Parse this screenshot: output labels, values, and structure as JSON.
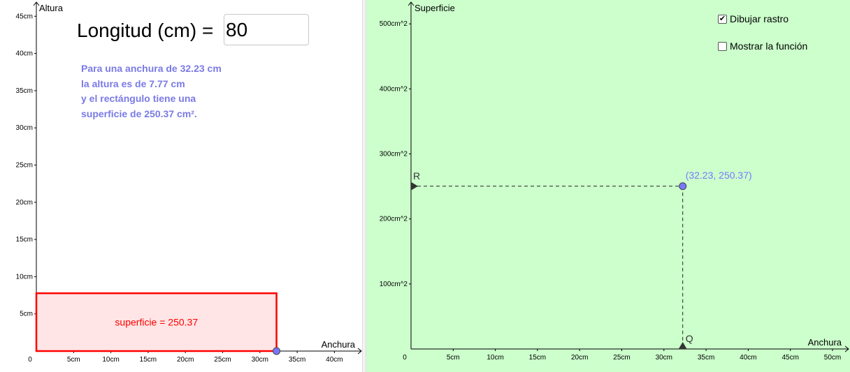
{
  "left": {
    "length_label": "Longitud (cm) =",
    "length_value": "80",
    "info_lines": [
      "Para una anchura de 32.23 cm",
      "la altura es de 7.77 cm",
      "y el rectángulo tiene una",
      "superficie de 250.37 cm²."
    ],
    "axes": {
      "y_title": "Altura",
      "x_title": "Anchura",
      "origin_label": "0",
      "x_ticks": [
        "5cm",
        "10cm",
        "15cm",
        "20cm",
        "25cm",
        "30cm",
        "35cm",
        "40cm"
      ],
      "y_ticks": [
        "5cm",
        "10cm",
        "15cm",
        "20cm",
        "25cm",
        "30cm",
        "35cm",
        "40cm",
        "45cm"
      ]
    },
    "rectangle": {
      "width": 32.23,
      "height": 7.77,
      "label": "superficie = 250.37",
      "stroke_color": "#ff0000",
      "fill_color": "#ffe5e5"
    },
    "point_color": "#7878ff"
  },
  "right": {
    "background_color": "#ccffcc",
    "axes": {
      "y_title": "Superficie",
      "x_title": "Anchura",
      "origin_label": "0",
      "x_ticks": [
        "5cm",
        "10cm",
        "15cm",
        "20cm",
        "25cm",
        "30cm",
        "35cm",
        "40cm",
        "45cm",
        "50cm"
      ],
      "y_ticks": [
        "100cm^2",
        "200cm^2",
        "300cm^2",
        "400cm^2",
        "500cm^2"
      ]
    },
    "point": {
      "x": 32.23,
      "y": 250.37,
      "label": "(32.23, 250.37)",
      "color": "#7878ff"
    },
    "r_label": "R",
    "q_label": "Q",
    "checkboxes": [
      {
        "label": "Dibujar rastro",
        "checked": true
      },
      {
        "label": "Mostrar la función",
        "checked": false
      }
    ]
  }
}
